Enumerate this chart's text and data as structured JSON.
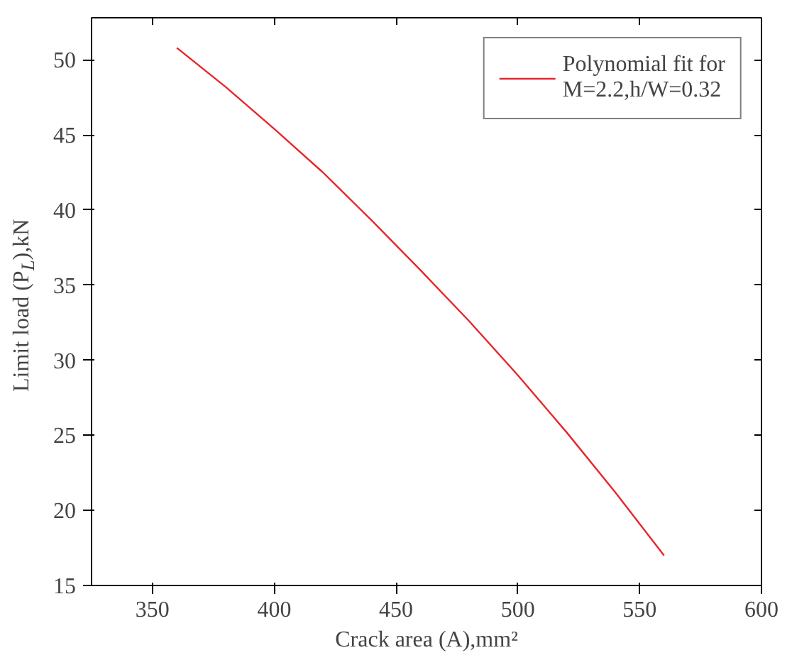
{
  "chart_data": {
    "type": "line",
    "xlabel": "Crack area (A),mm²",
    "ylabel": "Limit load (P$_{L}$),kN",
    "series": [
      {
        "name": "Polynomial fit for\nM=2.2,h/W=0.32",
        "color": "#e8262b",
        "x": [
          360,
          380,
          400,
          420,
          440,
          460,
          480,
          500,
          520,
          540,
          560
        ],
        "values": [
          50.8,
          48.2,
          45.4,
          42.5,
          39.3,
          36.0,
          32.6,
          29.0,
          25.2,
          21.2,
          17.0
        ]
      }
    ],
    "xlim": [
      325,
      600
    ],
    "ylim": [
      15,
      52.8
    ],
    "xticks": [
      350,
      400,
      450,
      500,
      550,
      600
    ],
    "yticks": [
      15,
      20,
      25,
      30,
      35,
      40,
      45,
      50
    ],
    "legend": "top right",
    "grid": false,
    "line_style": "solid",
    "marker": "none"
  }
}
